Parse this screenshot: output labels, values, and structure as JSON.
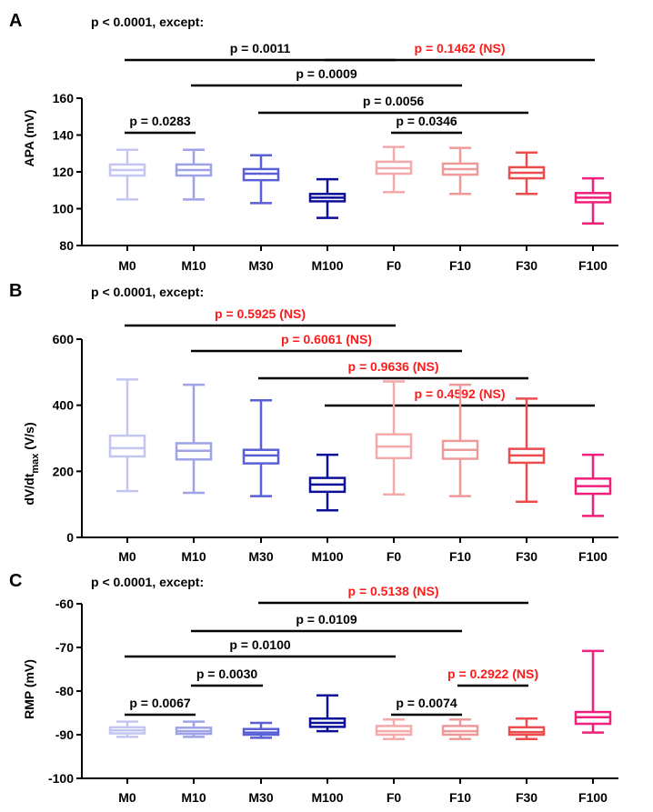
{
  "chart_data": [
    {
      "type": "boxplot",
      "panel": "A",
      "subtitle": "p < 0.0001, except:",
      "ylabel": "APA (mV)",
      "ylim": [
        80,
        160
      ],
      "yticks": [
        80,
        100,
        120,
        140,
        160
      ],
      "categories": [
        "M0",
        "M10",
        "M30",
        "M100",
        "F0",
        "F10",
        "F30",
        "F100"
      ],
      "boxes": [
        {
          "min": 105,
          "q1": 118,
          "median": 121,
          "q3": 124,
          "max": 132
        },
        {
          "min": 105,
          "q1": 118,
          "median": 121,
          "q3": 124,
          "max": 132
        },
        {
          "min": 103,
          "q1": 115.5,
          "median": 119,
          "q3": 121.5,
          "max": 129
        },
        {
          "min": 95,
          "q1": 104,
          "median": 106,
          "q3": 108,
          "max": 116
        },
        {
          "min": 109,
          "q1": 119,
          "median": 122,
          "q3": 125.5,
          "max": 133.5
        },
        {
          "min": 108,
          "q1": 118.5,
          "median": 121.5,
          "q3": 124.5,
          "max": 133
        },
        {
          "min": 108,
          "q1": 116.5,
          "median": 119.5,
          "q3": 122.5,
          "max": 130.5
        },
        {
          "min": 92,
          "q1": 103.5,
          "median": 106,
          "q3": 108.5,
          "max": 116.5
        }
      ],
      "comparisons": [
        {
          "from": 0,
          "to": 4,
          "label": "p = 0.0011",
          "ns": false
        },
        {
          "from": 3,
          "to": 7,
          "label": "p = 0.1462 (NS)",
          "ns": true
        },
        {
          "from": 1,
          "to": 5,
          "label": "p = 0.0009",
          "ns": false
        },
        {
          "from": 2,
          "to": 6,
          "label": "p = 0.0056",
          "ns": false
        },
        {
          "from": 0,
          "to": 1,
          "label": "p = 0.0283",
          "ns": false
        },
        {
          "from": 4,
          "to": 5,
          "label": "p = 0.0346",
          "ns": false
        }
      ]
    },
    {
      "type": "boxplot",
      "panel": "B",
      "subtitle": "p < 0.0001, except:",
      "ylabel": "dV/dt",
      "ylabel_sub": "max",
      "ylabel_unit": " (V/s)",
      "ylim": [
        0,
        600
      ],
      "yticks": [
        0,
        200,
        400,
        600
      ],
      "categories": [
        "M0",
        "M10",
        "M30",
        "M100",
        "F0",
        "F10",
        "F30",
        "F100"
      ],
      "boxes": [
        {
          "min": 140,
          "q1": 245,
          "median": 270,
          "q3": 308,
          "max": 478
        },
        {
          "min": 135,
          "q1": 236,
          "median": 262,
          "q3": 285,
          "max": 462
        },
        {
          "min": 125,
          "q1": 224,
          "median": 248,
          "q3": 265,
          "max": 415
        },
        {
          "min": 82,
          "q1": 138,
          "median": 160,
          "q3": 180,
          "max": 250
        },
        {
          "min": 130,
          "q1": 240,
          "median": 275,
          "q3": 312,
          "max": 472
        },
        {
          "min": 125,
          "q1": 238,
          "median": 265,
          "q3": 292,
          "max": 462
        },
        {
          "min": 108,
          "q1": 226,
          "median": 248,
          "q3": 268,
          "max": 420
        },
        {
          "min": 65,
          "q1": 132,
          "median": 155,
          "q3": 178,
          "max": 250
        }
      ],
      "comparisons": [
        {
          "from": 0,
          "to": 4,
          "label": "p = 0.5925 (NS)",
          "ns": true
        },
        {
          "from": 1,
          "to": 5,
          "label": "p = 0.6061 (NS)",
          "ns": true
        },
        {
          "from": 2,
          "to": 6,
          "label": "p = 0.9636 (NS)",
          "ns": true
        },
        {
          "from": 3,
          "to": 7,
          "label": "p = 0.4592 (NS)",
          "ns": true
        }
      ]
    },
    {
      "type": "boxplot",
      "panel": "C",
      "subtitle": "p < 0.0001, except:",
      "ylabel": "RMP (mV)",
      "ylim": [
        -100,
        -60
      ],
      "yticks": [
        -100,
        -90,
        -80,
        -70,
        -60
      ],
      "categories": [
        "M0",
        "M10",
        "M30",
        "M100",
        "F0",
        "F10",
        "F30",
        "F100"
      ],
      "boxes": [
        {
          "min": -90.5,
          "q1": -89.7,
          "median": -89,
          "q3": -88.3,
          "max": -87
        },
        {
          "min": -90.5,
          "q1": -89.8,
          "median": -89.2,
          "q3": -88.4,
          "max": -87
        },
        {
          "min": -90.7,
          "q1": -90,
          "median": -89.5,
          "q3": -88.7,
          "max": -87.3
        },
        {
          "min": -89.2,
          "q1": -88.2,
          "median": -87.3,
          "q3": -86.3,
          "max": -81
        },
        {
          "min": -91,
          "q1": -90,
          "median": -89.2,
          "q3": -88,
          "max": -86.5
        },
        {
          "min": -91,
          "q1": -90,
          "median": -89.2,
          "q3": -88,
          "max": -86.5
        },
        {
          "min": -91,
          "q1": -90,
          "median": -89.4,
          "q3": -88.3,
          "max": -86.3
        },
        {
          "min": -89.5,
          "q1": -87.5,
          "median": -86,
          "q3": -84.8,
          "max": -70.8
        }
      ],
      "comparisons": [
        {
          "from": 2,
          "to": 6,
          "label": "p = 0.5138 (NS)",
          "ns": true
        },
        {
          "from": 1,
          "to": 5,
          "label": "p = 0.0109",
          "ns": false
        },
        {
          "from": 0,
          "to": 4,
          "label": "p = 0.0100",
          "ns": false
        },
        {
          "from": 1,
          "to": 2,
          "label": "p = 0.0030",
          "ns": false
        },
        {
          "from": 5,
          "to": 6,
          "label": "p = 0.2922 (NS)",
          "ns": true
        },
        {
          "from": 0,
          "to": 1,
          "label": "p = 0.0067",
          "ns": false
        },
        {
          "from": 4,
          "to": 5,
          "label": "p = 0.0074",
          "ns": false
        }
      ]
    }
  ],
  "colors": {
    "series": [
      "#c3c6f0",
      "#9ea3e8",
      "#5a5fd6",
      "#0b0f9a",
      "#f4aaaa",
      "#ef9a9a",
      "#ec4c4c",
      "#f0207a"
    ],
    "significant": "#000000",
    "not_significant": "#ff1a1a",
    "axis": "#000000"
  }
}
